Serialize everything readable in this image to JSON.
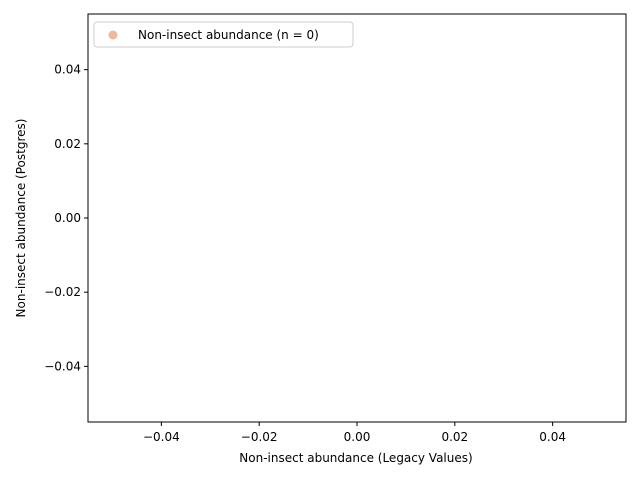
{
  "chart_data": {
    "type": "scatter",
    "title": "",
    "xlabel": "Non-insect abundance (Legacy Values)",
    "ylabel": "Non-insect abundance (Postgres)",
    "xlim": [
      -0.055,
      0.055
    ],
    "ylim": [
      -0.055,
      0.055
    ],
    "xticks": [
      -0.04,
      -0.02,
      0.0,
      0.02,
      0.04
    ],
    "xtick_labels": [
      "−0.04",
      "−0.02",
      "0.00",
      "0.02",
      "0.04"
    ],
    "yticks": [
      -0.04,
      -0.02,
      0.0,
      0.02,
      0.04
    ],
    "ytick_labels": [
      "−0.04",
      "−0.02",
      "0.00",
      "0.02",
      "0.04"
    ],
    "grid": false,
    "legend_position": "top-left",
    "series": [
      {
        "name": "Non-insect abundance (n = 0)",
        "color": "#e8a07a",
        "x": [],
        "y": []
      }
    ]
  }
}
